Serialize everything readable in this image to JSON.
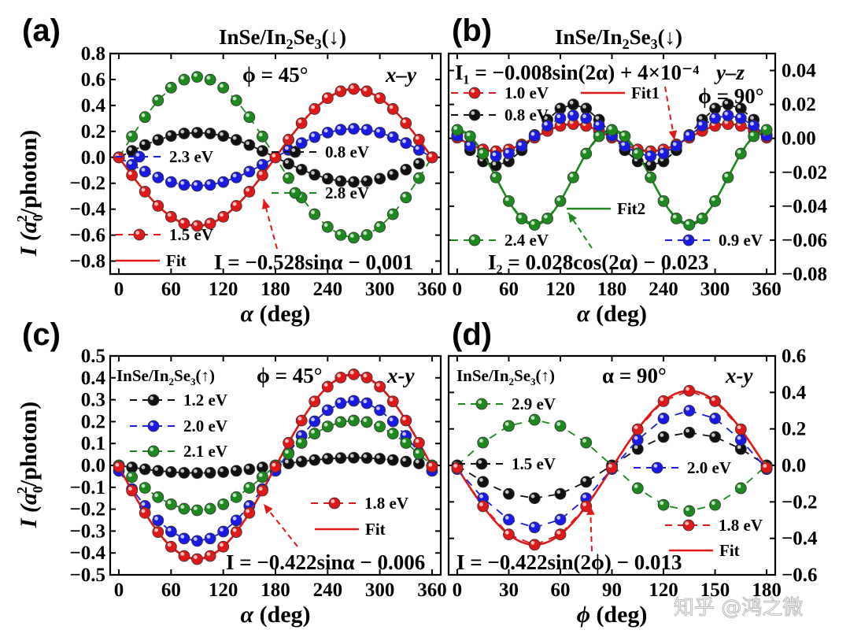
{
  "figure": {
    "watermark": "知乎 @鸿之微",
    "colors": {
      "red": "#e11818",
      "blue": "#1a1ae6",
      "green": "#1c8a1c",
      "black": "#111111"
    }
  },
  "chart_data": [
    {
      "panel": "(a)",
      "type": "scatter",
      "title_prefix": "InSe/In",
      "title_sub": "2",
      "title_mid": "Se",
      "title_sub2": "3",
      "title_suffix": "(↓)",
      "labels": [
        "ϕ = 45°",
        "x–y"
      ],
      "fit_equation": "I = −0.528sinα − 0.001",
      "xlabel": "α (deg)",
      "ylabel_parts": [
        "I (a",
        "0",
        "2",
        "/photon)"
      ],
      "xlim": [
        -10,
        370
      ],
      "ylim": [
        -0.9,
        0.8
      ],
      "y_axis_side": "left",
      "xticks": [
        0,
        60,
        120,
        180,
        240,
        300,
        360
      ],
      "xtick_labels": [
        "0",
        "60",
        "120",
        "180",
        "240",
        "300",
        "360"
      ],
      "yticks": [
        -0.8,
        -0.6,
        -0.4,
        -0.2,
        0.0,
        0.2,
        0.4,
        0.6,
        0.8
      ],
      "ytick_labels": [
        "−0.8",
        "−0.6",
        "−0.4",
        "−0.2",
        "0.0",
        "0.2",
        "0.4",
        "0.6",
        "0.8"
      ],
      "series": [
        {
          "name": "2.3 eV",
          "color": "blue",
          "amp": -0.22,
          "func": "sin",
          "freq": 1,
          "offset": 0,
          "x_step": 15
        },
        {
          "name": "0.8 eV",
          "color": "black",
          "amp": 0.19,
          "func": "sin",
          "freq": 1,
          "offset": 0,
          "x_step": 15
        },
        {
          "name": "2.8 eV",
          "color": "green",
          "amp": 0.62,
          "func": "sin",
          "freq": 1,
          "offset": 0,
          "x_step": 15
        },
        {
          "name": "1.5 eV",
          "color": "red",
          "amp": -0.528,
          "func": "sin",
          "freq": 1,
          "offset": -0.001,
          "x_step": 15
        }
      ],
      "fit": {
        "name": "Fit",
        "color": "red",
        "amp": -0.528,
        "func": "sin",
        "freq": 1,
        "offset": -0.001
      }
    },
    {
      "panel": "(b)",
      "type": "scatter",
      "title_prefix": "InSe/In",
      "title_sub": "2",
      "title_mid": "Se",
      "title_sub2": "3",
      "title_suffix": "(↓)",
      "labels": [
        "y–z",
        "ϕ = 90°"
      ],
      "fit_equation": "I₁ = −0.008sin(2α) + 4×10⁻⁴",
      "fit_equation2": "I₂ = 0.028cos(2α) − 0.023",
      "xlabel": "α (deg)",
      "xlim": [
        -10,
        370
      ],
      "ylim": [
        -0.08,
        0.05
      ],
      "y_axis_side": "right",
      "xticks": [
        0,
        60,
        120,
        180,
        240,
        300,
        360
      ],
      "xtick_labels": [
        "0",
        "60",
        "120",
        "180",
        "240",
        "300",
        "360"
      ],
      "yticks": [
        -0.08,
        -0.06,
        -0.04,
        -0.02,
        0.0,
        0.02,
        0.04
      ],
      "ytick_labels": [
        "−0.08",
        "−0.06",
        "−0.04",
        "−0.02",
        "0.00",
        "0.02",
        "0.04"
      ],
      "series": [
        {
          "name": "1.0 eV",
          "color": "red",
          "amp": -0.008,
          "func": "sin",
          "freq": 2,
          "offset": 0.0004,
          "x_step": 15
        },
        {
          "name": "0.8 eV",
          "color": "black",
          "amp": -0.018,
          "func": "sin",
          "freq": 2,
          "offset": 0.002,
          "x_step": 15
        },
        {
          "name": "0.9 eV",
          "color": "blue",
          "amp": -0.012,
          "func": "sin",
          "freq": 2,
          "offset": 0.0015,
          "x_step": 15
        },
        {
          "name": "2.4 eV",
          "color": "green",
          "amp": 0.028,
          "func": "cos",
          "freq": 2,
          "offset": -0.023,
          "x_step": 15
        }
      ],
      "fit": {
        "name": "Fit1",
        "color": "red",
        "amp": -0.008,
        "func": "sin",
        "freq": 2,
        "offset": 0.0004
      },
      "fit2": {
        "name": "Fit2",
        "color": "green",
        "amp": 0.028,
        "func": "cos",
        "freq": 2,
        "offset": -0.023
      }
    },
    {
      "panel": "(c)",
      "type": "scatter",
      "title_prefix": "InSe/In",
      "title_sub": "2",
      "title_mid": "Se",
      "title_sub2": "3",
      "title_suffix": "(↑)",
      "labels": [
        "ϕ = 45°",
        "x-y"
      ],
      "fit_equation": "I = −0.422sinα − 0.006",
      "xlabel": "α (deg)",
      "ylabel_parts": [
        "I (a",
        "0",
        "2",
        "/photon)"
      ],
      "xlim": [
        -10,
        370
      ],
      "ylim": [
        -0.5,
        0.5
      ],
      "y_axis_side": "left",
      "xticks": [
        0,
        60,
        120,
        180,
        240,
        300,
        360
      ],
      "xtick_labels": [
        "0",
        "60",
        "120",
        "180",
        "240",
        "300",
        "360"
      ],
      "yticks": [
        -0.5,
        -0.4,
        -0.3,
        -0.2,
        -0.1,
        0.0,
        0.1,
        0.2,
        0.3,
        0.4,
        0.5
      ],
      "ytick_labels": [
        "−0.5",
        "−0.4",
        "−0.3",
        "−0.2",
        "−0.1",
        "0.0",
        "0.1",
        "0.2",
        "0.3",
        "0.4",
        "0.5"
      ],
      "series": [
        {
          "name": "1.2 eV",
          "color": "black",
          "amp": -0.035,
          "func": "sin",
          "freq": 1,
          "offset": 0,
          "x_step": 15
        },
        {
          "name": "2.0 eV",
          "color": "blue",
          "amp": -0.32,
          "func": "sin",
          "freq": 1,
          "offset": -0.025,
          "x_step": 15
        },
        {
          "name": "2.1 eV",
          "color": "green",
          "amp": -0.205,
          "func": "sin",
          "freq": 1,
          "offset": 0,
          "x_step": 15
        },
        {
          "name": "1.8 eV",
          "color": "red",
          "amp": -0.422,
          "func": "sin",
          "freq": 1,
          "offset": -0.006,
          "x_step": 15
        }
      ],
      "fit": {
        "name": "Fit",
        "color": "red",
        "amp": -0.422,
        "func": "sin",
        "freq": 1,
        "offset": -0.006
      }
    },
    {
      "panel": "(d)",
      "type": "scatter",
      "title_prefix": "InSe/In",
      "title_sub": "2",
      "title_mid": "Se",
      "title_sub2": "3",
      "title_suffix": "(↑)",
      "labels": [
        "α = 90°",
        "x-y"
      ],
      "fit_equation": "I = −0.422sin(2ϕ) − 0.013",
      "xlabel": "ϕ (deg)",
      "xlim": [
        -5,
        185
      ],
      "ylim": [
        -0.6,
        0.6
      ],
      "y_axis_side": "right",
      "xticks": [
        0,
        30,
        60,
        90,
        120,
        150,
        180
      ],
      "xtick_labels": [
        "0",
        "30",
        "60",
        "90",
        "120",
        "150",
        "180"
      ],
      "yticks": [
        -0.6,
        -0.4,
        -0.2,
        0.0,
        0.2,
        0.4,
        0.6
      ],
      "ytick_labels": [
        "−0.6",
        "−0.4",
        "−0.2",
        "0.0",
        "0.2",
        "0.4",
        "0.6"
      ],
      "series": [
        {
          "name": "2.9 eV",
          "color": "green",
          "amp": 0.25,
          "func": "sin",
          "freq": 2,
          "offset": 0,
          "x_step": 15
        },
        {
          "name": "1.5 eV",
          "color": "black",
          "amp": -0.18,
          "func": "sin",
          "freq": 2,
          "offset": 0,
          "x_step": 15
        },
        {
          "name": "2.0 eV",
          "color": "blue",
          "amp": -0.32,
          "func": "sin",
          "freq": 2,
          "offset": -0.02,
          "x_step": 15
        },
        {
          "name": "1.8 eV",
          "color": "red",
          "amp": -0.422,
          "func": "sin",
          "freq": 2,
          "offset": -0.013,
          "x_step": 15
        }
      ],
      "fit": {
        "name": "Fit",
        "color": "red",
        "amp": -0.422,
        "func": "sin",
        "freq": 2,
        "offset": -0.013
      }
    }
  ]
}
